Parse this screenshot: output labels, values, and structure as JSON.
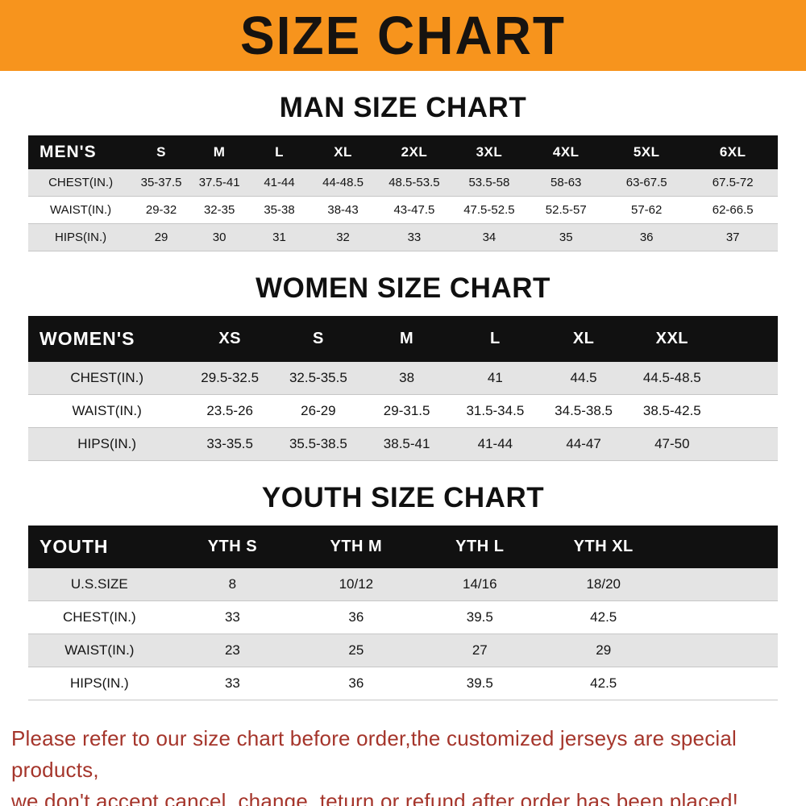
{
  "banner": {
    "title": "SIZE CHART"
  },
  "colors": {
    "banner_bg": "#f7941d",
    "header_bg": "#111111",
    "header_text": "#ffffff",
    "alt_row_bg": "#e4e4e4",
    "footer_text": "#a5352b"
  },
  "chart_data": [
    {
      "type": "table",
      "name": "mens-size-table",
      "title": "MAN SIZE CHART",
      "corner_label": "MEN'S",
      "columns": [
        "S",
        "M",
        "L",
        "XL",
        "2XL",
        "3XL",
        "4XL",
        "5XL",
        "6XL"
      ],
      "rows": [
        {
          "label": "CHEST(IN.)",
          "values": [
            "35-37.5",
            "37.5-41",
            "41-44",
            "44-48.5",
            "48.5-53.5",
            "53.5-58",
            "58-63",
            "63-67.5",
            "67.5-72"
          ]
        },
        {
          "label": "WAIST(IN.)",
          "values": [
            "29-32",
            "32-35",
            "35-38",
            "38-43",
            "43-47.5",
            "47.5-52.5",
            "52.5-57",
            "57-62",
            "62-66.5"
          ]
        },
        {
          "label": "HIPS(IN.)",
          "values": [
            "29",
            "30",
            "31",
            "32",
            "33",
            "34",
            "35",
            "36",
            "37"
          ]
        }
      ],
      "col_widths_pct": [
        14,
        7.5,
        8,
        8,
        9,
        10,
        10,
        10.5,
        11,
        12
      ]
    },
    {
      "type": "table",
      "name": "womens-size-table",
      "title": "WOMEN SIZE CHART",
      "corner_label": "WOMEN'S",
      "columns": [
        "XS",
        "S",
        "M",
        "L",
        "XL",
        "XXL"
      ],
      "rows": [
        {
          "label": "CHEST(IN.)",
          "values": [
            "29.5-32.5",
            "32.5-35.5",
            "38",
            "41",
            "44.5",
            "44.5-48.5"
          ]
        },
        {
          "label": "WAIST(IN.)",
          "values": [
            "23.5-26",
            "26-29",
            "29-31.5",
            "31.5-34.5",
            "34.5-38.5",
            "38.5-42.5"
          ]
        },
        {
          "label": "HIPS(IN.)",
          "values": [
            "33-35.5",
            "35.5-38.5",
            "38.5-41",
            "41-44",
            "44-47",
            "47-50"
          ]
        }
      ],
      "col_widths_pct": [
        21,
        11.8,
        11.8,
        11.8,
        11.8,
        11.8,
        11.8,
        8.2
      ]
    },
    {
      "type": "table",
      "name": "youth-size-table",
      "title": "YOUTH SIZE CHART",
      "corner_label": "YOUTH",
      "columns": [
        "YTH S",
        "YTH M",
        "YTH L",
        "YTH XL"
      ],
      "rows": [
        {
          "label": "U.S.SIZE",
          "values": [
            "8",
            "10/12",
            "14/16",
            "18/20"
          ]
        },
        {
          "label": "CHEST(IN.)",
          "values": [
            "33",
            "36",
            "39.5",
            "42.5"
          ]
        },
        {
          "label": "WAIST(IN.)",
          "values": [
            "23",
            "25",
            "27",
            "29"
          ]
        },
        {
          "label": "HIPS(IN.)",
          "values": [
            "33",
            "36",
            "39.5",
            "42.5"
          ]
        }
      ],
      "col_widths_pct": [
        19,
        16.5,
        16.5,
        16.5,
        16.5,
        15
      ]
    }
  ],
  "footer": {
    "lines": [
      "Please refer to our size chart before order,the customized jerseys are special products,",
      "we don't accept cancel, change, teturn or refund after order has been placed!"
    ]
  }
}
